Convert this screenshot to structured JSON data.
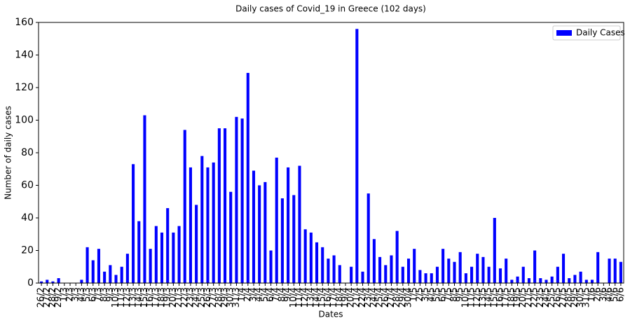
{
  "chart_data": {
    "type": "bar",
    "title": "Daily cases of Covid_19 in Greece (102 days)",
    "x_label": "Dates",
    "y_label": "Number of daily cases",
    "categories": [
      "26/2",
      "27/2",
      "28/2",
      "29/2",
      "1/3",
      "2/3",
      "3/3",
      "4/3",
      "5/3",
      "6/3",
      "7/3",
      "8/3",
      "9/3",
      "10/3",
      "11/3",
      "12/3",
      "13/3",
      "14/3",
      "15/3",
      "16/3",
      "17/3",
      "18/3",
      "19/3",
      "20/3",
      "21/3",
      "22/3",
      "23/3",
      "24/3",
      "25/3",
      "26/3",
      "27/3",
      "28/3",
      "29/3",
      "30/3",
      "31/3",
      "1/4",
      "2/4",
      "3/4",
      "4/4",
      "5/4",
      "6/4",
      "7/4",
      "8/4",
      "9/4",
      "10/4",
      "11/4",
      "12/4",
      "13/4",
      "14/4",
      "15/4",
      "16/4",
      "17/4",
      "18/4",
      "19/4",
      "20/4",
      "21/4",
      "22/4",
      "23/4",
      "24/4",
      "25/4",
      "26/4",
      "27/4",
      "28/4",
      "29/4",
      "30/4",
      "1/5",
      "2/5",
      "3/5",
      "4/5",
      "5/5",
      "6/5",
      "7/5",
      "8/5",
      "9/5",
      "10/5",
      "11/5",
      "12/5",
      "13/5",
      "14/5",
      "15/5",
      "16/5",
      "17/5",
      "18/5",
      "19/5",
      "20/5",
      "21/5",
      "22/5",
      "23/5",
      "24/5",
      "25/5",
      "26/5",
      "27/5",
      "28/5",
      "29/5",
      "30/5",
      "31/5",
      "1/6",
      "2/6",
      "3/6",
      "4/6",
      "5/6",
      "6/6"
    ],
    "series": [
      {
        "name": "Daily Cases",
        "color": "#0000ff",
        "values": [
          1,
          2,
          1,
          3,
          0,
          0,
          0,
          2,
          22,
          14,
          21,
          7,
          11,
          5,
          10,
          18,
          73,
          38,
          103,
          21,
          35,
          31,
          46,
          31,
          35,
          94,
          71,
          48,
          78,
          71,
          74,
          95,
          95,
          56,
          102,
          101,
          129,
          69,
          60,
          62,
          20,
          77,
          52,
          71,
          54,
          72,
          33,
          31,
          25,
          22,
          15,
          17,
          11,
          0,
          10,
          156,
          7,
          55,
          27,
          16,
          11,
          17,
          32,
          10,
          15,
          21,
          8,
          6,
          6,
          10,
          21,
          15,
          13,
          19,
          6,
          10,
          18,
          16,
          10,
          40,
          9,
          15,
          2,
          4,
          10,
          3,
          20,
          3,
          2,
          4,
          10,
          18,
          3,
          5,
          7,
          2,
          2,
          19,
          0,
          15,
          15,
          13
        ]
      }
    ],
    "ylim": [
      0,
      160
    ],
    "yticks": [
      0,
      20,
      40,
      60,
      80,
      100,
      120,
      140,
      160
    ],
    "legend": "upper right"
  }
}
